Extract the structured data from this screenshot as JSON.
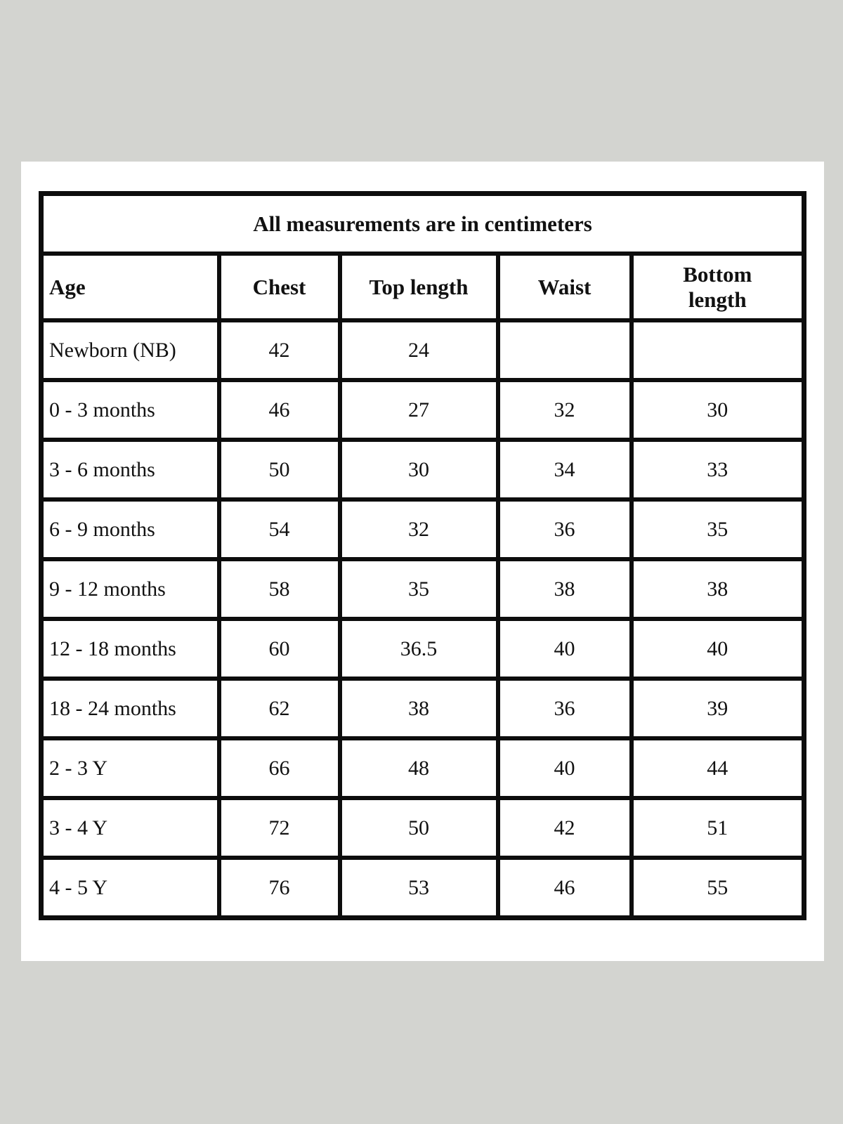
{
  "page": {
    "background_color": "#d3d4d0",
    "card_color": "#ffffff",
    "border_color": "#0d0d0d",
    "text_color": "#111111"
  },
  "table": {
    "title": "All measurements are in centimeters",
    "columns": [
      "Age",
      "Chest",
      "Top length",
      "Waist",
      "Bottom length"
    ],
    "rows": [
      [
        "Newborn (NB)",
        "42",
        "24",
        "",
        ""
      ],
      [
        "0 - 3 months",
        "46",
        "27",
        "32",
        "30"
      ],
      [
        "3 - 6 months",
        "50",
        "30",
        "34",
        "33"
      ],
      [
        "6 - 9 months",
        "54",
        "32",
        "36",
        "35"
      ],
      [
        "9 - 12 months",
        "58",
        "35",
        "38",
        "38"
      ],
      [
        "12 - 18 months",
        "60",
        "36.5",
        "40",
        "40"
      ],
      [
        "18 - 24 months",
        "62",
        "38",
        "36",
        "39"
      ],
      [
        "2 - 3 Y",
        "66",
        "48",
        "40",
        "44"
      ],
      [
        "3 - 4 Y",
        "72",
        "50",
        "42",
        "51"
      ],
      [
        "4 - 5 Y",
        "76",
        "53",
        "46",
        "55"
      ]
    ]
  }
}
